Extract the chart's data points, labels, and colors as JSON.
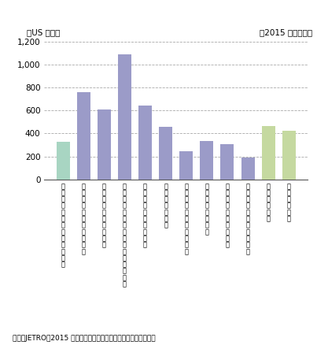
{
  "categories_vertical": [
    "メキシコシティ（メキシコ）",
    "サンパウロ（ブラジル）",
    "サンティアゴ（チリ）",
    "ブエノスアイレス（アルゼンチン）",
    "ボゴタ（コロンビア）",
    "リマ（ペルー）",
    "ニューデリー（インド）",
    "バンコク（タイ）",
    "マニラ（フィリピン）",
    "ホーチミン（ベトナム）",
    "上海（中国）",
    "深圳（中国）"
  ],
  "values": [
    325,
    760,
    605,
    1090,
    643,
    460,
    243,
    337,
    308,
    192,
    465,
    425
  ],
  "bar_colors": [
    "#a8d5c2",
    "#9b9bc8",
    "#9b9bc8",
    "#9b9bc8",
    "#9b9bc8",
    "#9b9bc8",
    "#9b9bc8",
    "#9b9bc8",
    "#9b9bc8",
    "#9b9bc8",
    "#c5d9a0",
    "#c5d9a0"
  ],
  "ylabel": "（US ドル）",
  "top_right_label": "（2015 年度調査）",
  "footer": "資料：JETRO「2015 年度投資コスト比較」から経済産業省作成。",
  "ylim": [
    0,
    1200
  ],
  "yticks": [
    0,
    200,
    400,
    600,
    800,
    1000,
    1200
  ],
  "grid_color": "#aaaaaa",
  "background_color": "#ffffff"
}
